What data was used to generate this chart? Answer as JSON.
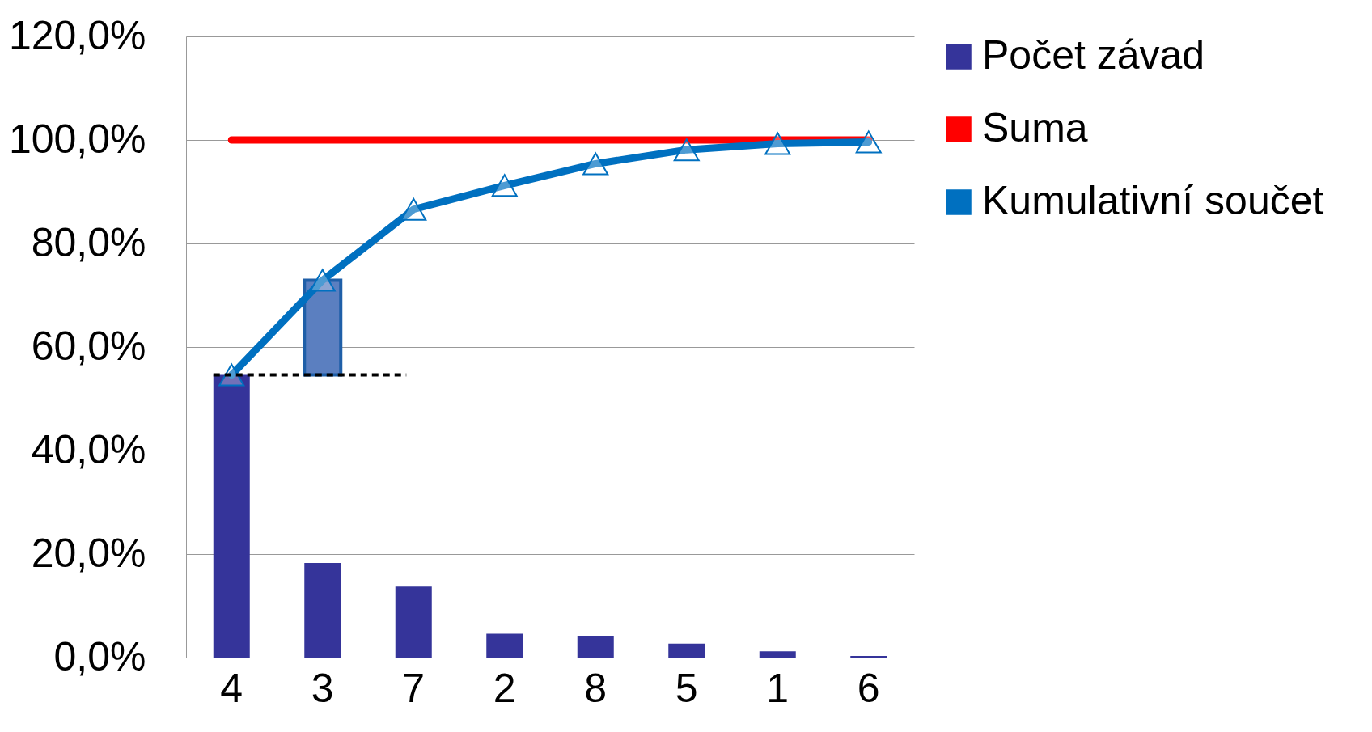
{
  "chart_data": {
    "type": "bar",
    "categories": [
      "4",
      "3",
      "7",
      "2",
      "8",
      "5",
      "1",
      "6"
    ],
    "series": [
      {
        "name": "Počet závad",
        "color": "#35349a",
        "values": [
          54.6,
          18.3,
          13.7,
          4.6,
          4.2,
          2.7,
          1.2,
          0.3
        ]
      },
      {
        "name": "Suma",
        "type": "line",
        "color": "#ff0000",
        "marker": "none",
        "values": [
          100,
          100,
          100,
          100,
          100,
          100,
          100,
          100
        ]
      },
      {
        "name": "Kumulativní součet",
        "type": "line",
        "color": "#0070c0",
        "marker": "triangle",
        "values": [
          54.6,
          72.9,
          86.6,
          91.2,
          95.4,
          98.1,
          99.3,
          99.6
        ]
      },
      {
        "color": "#5b7fc0",
        "base": [
          null,
          54.6,
          null,
          null,
          null,
          null,
          null,
          null
        ],
        "values": [
          null,
          18.3,
          null,
          null,
          null,
          null,
          null,
          null
        ]
      }
    ],
    "ylim": [
      0,
      120
    ],
    "yticks": [
      {
        "value": 0,
        "label": "0,0%"
      },
      {
        "value": 20,
        "label": "20,0%"
      },
      {
        "value": 40,
        "label": "40,0%"
      },
      {
        "value": 60,
        "label": "60,0%"
      },
      {
        "value": 80,
        "label": "80,0%"
      },
      {
        "value": 100,
        "label": "100,0%"
      },
      {
        "value": 120,
        "label": "120,0%"
      }
    ],
    "ref_lines": [
      {
        "axis": "y",
        "value": 54.6,
        "color": "#000000",
        "line_style": "dashed"
      }
    ],
    "grid": "y",
    "legend": "right",
    "line_style": "solid"
  }
}
